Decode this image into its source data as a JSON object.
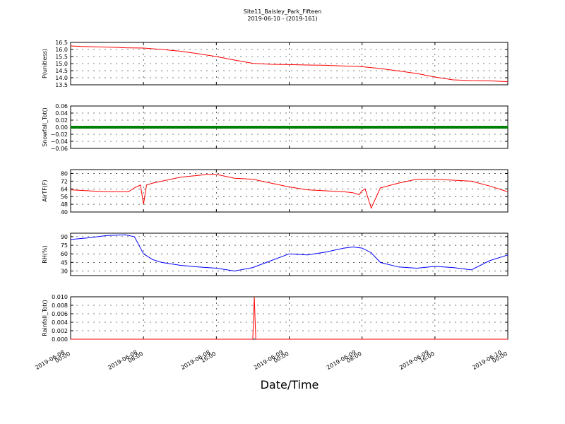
{
  "figure": {
    "title_line1": "Site11_Baisley_Park_Fifteen",
    "title_line2": "2019-06-10 - (2019-161)",
    "xlabel": "Date/Time",
    "x_ticks": [
      {
        "line1": "2019-06-08",
        "line2": "00:00",
        "hours": 0
      },
      {
        "line1": "2019-06-08",
        "line2": "08:00",
        "hours": 8
      },
      {
        "line1": "2019-06-08",
        "line2": "16:00",
        "hours": 16
      },
      {
        "line1": "2019-06-09",
        "line2": "00:00",
        "hours": 24
      },
      {
        "line1": "2019-06-09",
        "line2": "08:00",
        "hours": 32
      },
      {
        "line1": "2019-06-09",
        "line2": "16:00",
        "hours": 40
      },
      {
        "line1": "2019-06-10",
        "line2": "00:00",
        "hours": 48
      }
    ]
  },
  "chart_data": [
    {
      "type": "line",
      "ylabel": "P(unitless)",
      "color": "#ff0000",
      "ylim": [
        13.5,
        16.5
      ],
      "yticks": [
        "13.5",
        "14.0",
        "14.5",
        "15.0",
        "15.5",
        "16.0",
        "16.5"
      ],
      "ytick_values": [
        13.5,
        14.0,
        14.5,
        15.0,
        15.5,
        16.0,
        16.5
      ],
      "x": [
        "2019-06-08 00:00",
        "2019-06-08 01:00",
        "2019-06-08 03:00",
        "2019-06-08 05:00",
        "2019-06-08 06:00",
        "2019-06-08 08:00",
        "2019-06-08 10:00",
        "2019-06-08 12:00",
        "2019-06-08 14:00",
        "2019-06-08 16:00",
        "2019-06-08 18:00",
        "2019-06-08 20:00",
        "2019-06-08 22:00",
        "2019-06-09 00:00",
        "2019-06-09 02:00",
        "2019-06-09 04:00",
        "2019-06-09 06:00",
        "2019-06-09 08:00",
        "2019-06-09 10:00",
        "2019-06-09 12:00",
        "2019-06-09 14:00",
        "2019-06-09 16:00",
        "2019-06-09 18:00",
        "2019-06-09 20:00",
        "2019-06-09 22:00",
        "2019-06-10 00:00"
      ],
      "values": [
        16.25,
        16.22,
        16.18,
        16.15,
        16.12,
        16.1,
        16.0,
        15.88,
        15.7,
        15.5,
        15.25,
        15.02,
        14.95,
        14.93,
        14.9,
        14.88,
        14.83,
        14.78,
        14.65,
        14.48,
        14.3,
        14.05,
        13.85,
        13.8,
        13.78,
        13.72
      ]
    },
    {
      "type": "line",
      "ylabel": "Snowfall_Tot()",
      "color": "#008000",
      "ylim": [
        -0.06,
        0.06
      ],
      "yticks": [
        "−0.06",
        "−0.04",
        "−0.02",
        "0.00",
        "0.02",
        "0.04",
        "0.06"
      ],
      "ytick_values": [
        -0.06,
        -0.04,
        -0.02,
        0.0,
        0.02,
        0.04,
        0.06
      ],
      "x": [
        "2019-06-08 00:00",
        "2019-06-10 00:00"
      ],
      "values": [
        0.0,
        0.0
      ],
      "marker": "dot"
    },
    {
      "type": "line",
      "ylabel": "AirTF(F)",
      "color": "#ff0000",
      "ylim": [
        40,
        84
      ],
      "yticks": [
        "40",
        "48",
        "56",
        "64",
        "72",
        "80"
      ],
      "ytick_values": [
        40,
        48,
        56,
        64,
        72,
        80
      ],
      "x": [
        "2019-06-08 00:00",
        "2019-06-08 02:00",
        "2019-06-08 04:00",
        "2019-06-08 06:00",
        "2019-06-08 06:20",
        "2019-06-08 07:00",
        "2019-06-08 07:40",
        "2019-06-08 08:00",
        "2019-06-08 08:20",
        "2019-06-08 09:00",
        "2019-06-08 10:00",
        "2019-06-08 12:00",
        "2019-06-08 13:00",
        "2019-06-08 14:00",
        "2019-06-08 15:00",
        "2019-06-08 16:00",
        "2019-06-08 17:00",
        "2019-06-08 18:00",
        "2019-06-08 20:00",
        "2019-06-08 22:00",
        "2019-06-09 00:00",
        "2019-06-09 02:00",
        "2019-06-09 04:00",
        "2019-06-09 06:00",
        "2019-06-09 07:00",
        "2019-06-09 07:40",
        "2019-06-09 08:00",
        "2019-06-09 08:20",
        "2019-06-09 09:00",
        "2019-06-09 10:00",
        "2019-06-09 12:00",
        "2019-06-09 14:00",
        "2019-06-09 16:00",
        "2019-06-09 18:00",
        "2019-06-09 20:00",
        "2019-06-09 22:00",
        "2019-06-10 00:00"
      ],
      "values": [
        63,
        62,
        61,
        61,
        61,
        65,
        68,
        48,
        68,
        70,
        72,
        76,
        77,
        78,
        79,
        79,
        77,
        75,
        74,
        70,
        66,
        63,
        62,
        61,
        60,
        58,
        62,
        64,
        44,
        65,
        70,
        74,
        74,
        73,
        72,
        67,
        61
      ]
    },
    {
      "type": "line",
      "ylabel": "RH(%)",
      "color": "#0000ff",
      "ylim": [
        22,
        96
      ],
      "yticks": [
        "30",
        "45",
        "60",
        "75",
        "90"
      ],
      "ytick_values": [
        30,
        45,
        60,
        75,
        90
      ],
      "x": [
        "2019-06-08 00:00",
        "2019-06-08 02:00",
        "2019-06-08 04:00",
        "2019-06-08 06:00",
        "2019-06-08 07:00",
        "2019-06-08 08:00",
        "2019-06-08 09:00",
        "2019-06-08 10:00",
        "2019-06-08 12:00",
        "2019-06-08 14:00",
        "2019-06-08 16:00",
        "2019-06-08 18:00",
        "2019-06-08 20:00",
        "2019-06-08 22:00",
        "2019-06-09 00:00",
        "2019-06-09 02:00",
        "2019-06-09 04:00",
        "2019-06-09 06:00",
        "2019-06-09 07:00",
        "2019-06-09 08:00",
        "2019-06-09 09:00",
        "2019-06-09 10:00",
        "2019-06-09 12:00",
        "2019-06-09 14:00",
        "2019-06-09 16:00",
        "2019-06-09 18:00",
        "2019-06-09 20:00",
        "2019-06-09 22:00",
        "2019-06-10 00:00"
      ],
      "values": [
        85,
        88,
        92,
        93,
        90,
        60,
        50,
        45,
        40,
        37,
        35,
        30,
        36,
        48,
        60,
        58,
        63,
        70,
        72,
        70,
        62,
        45,
        37,
        35,
        38,
        36,
        32,
        48,
        58
      ]
    },
    {
      "type": "line",
      "ylabel": "Rainfall_Tot()",
      "color": "#ff0000",
      "ylim": [
        0.0,
        0.01
      ],
      "yticks": [
        "0.000",
        "0.002",
        "0.004",
        "0.006",
        "0.008",
        "0.010"
      ],
      "ytick_values": [
        0.0,
        0.002,
        0.004,
        0.006,
        0.008,
        0.01
      ],
      "x": [
        "2019-06-08 00:00",
        "2019-06-08 20:00",
        "2019-06-08 20:10",
        "2019-06-08 20:15",
        "2019-06-08 20:20",
        "2019-06-10 00:00"
      ],
      "values": [
        0.0,
        0.0,
        0.01,
        0.005,
        0.0,
        0.0
      ]
    }
  ]
}
